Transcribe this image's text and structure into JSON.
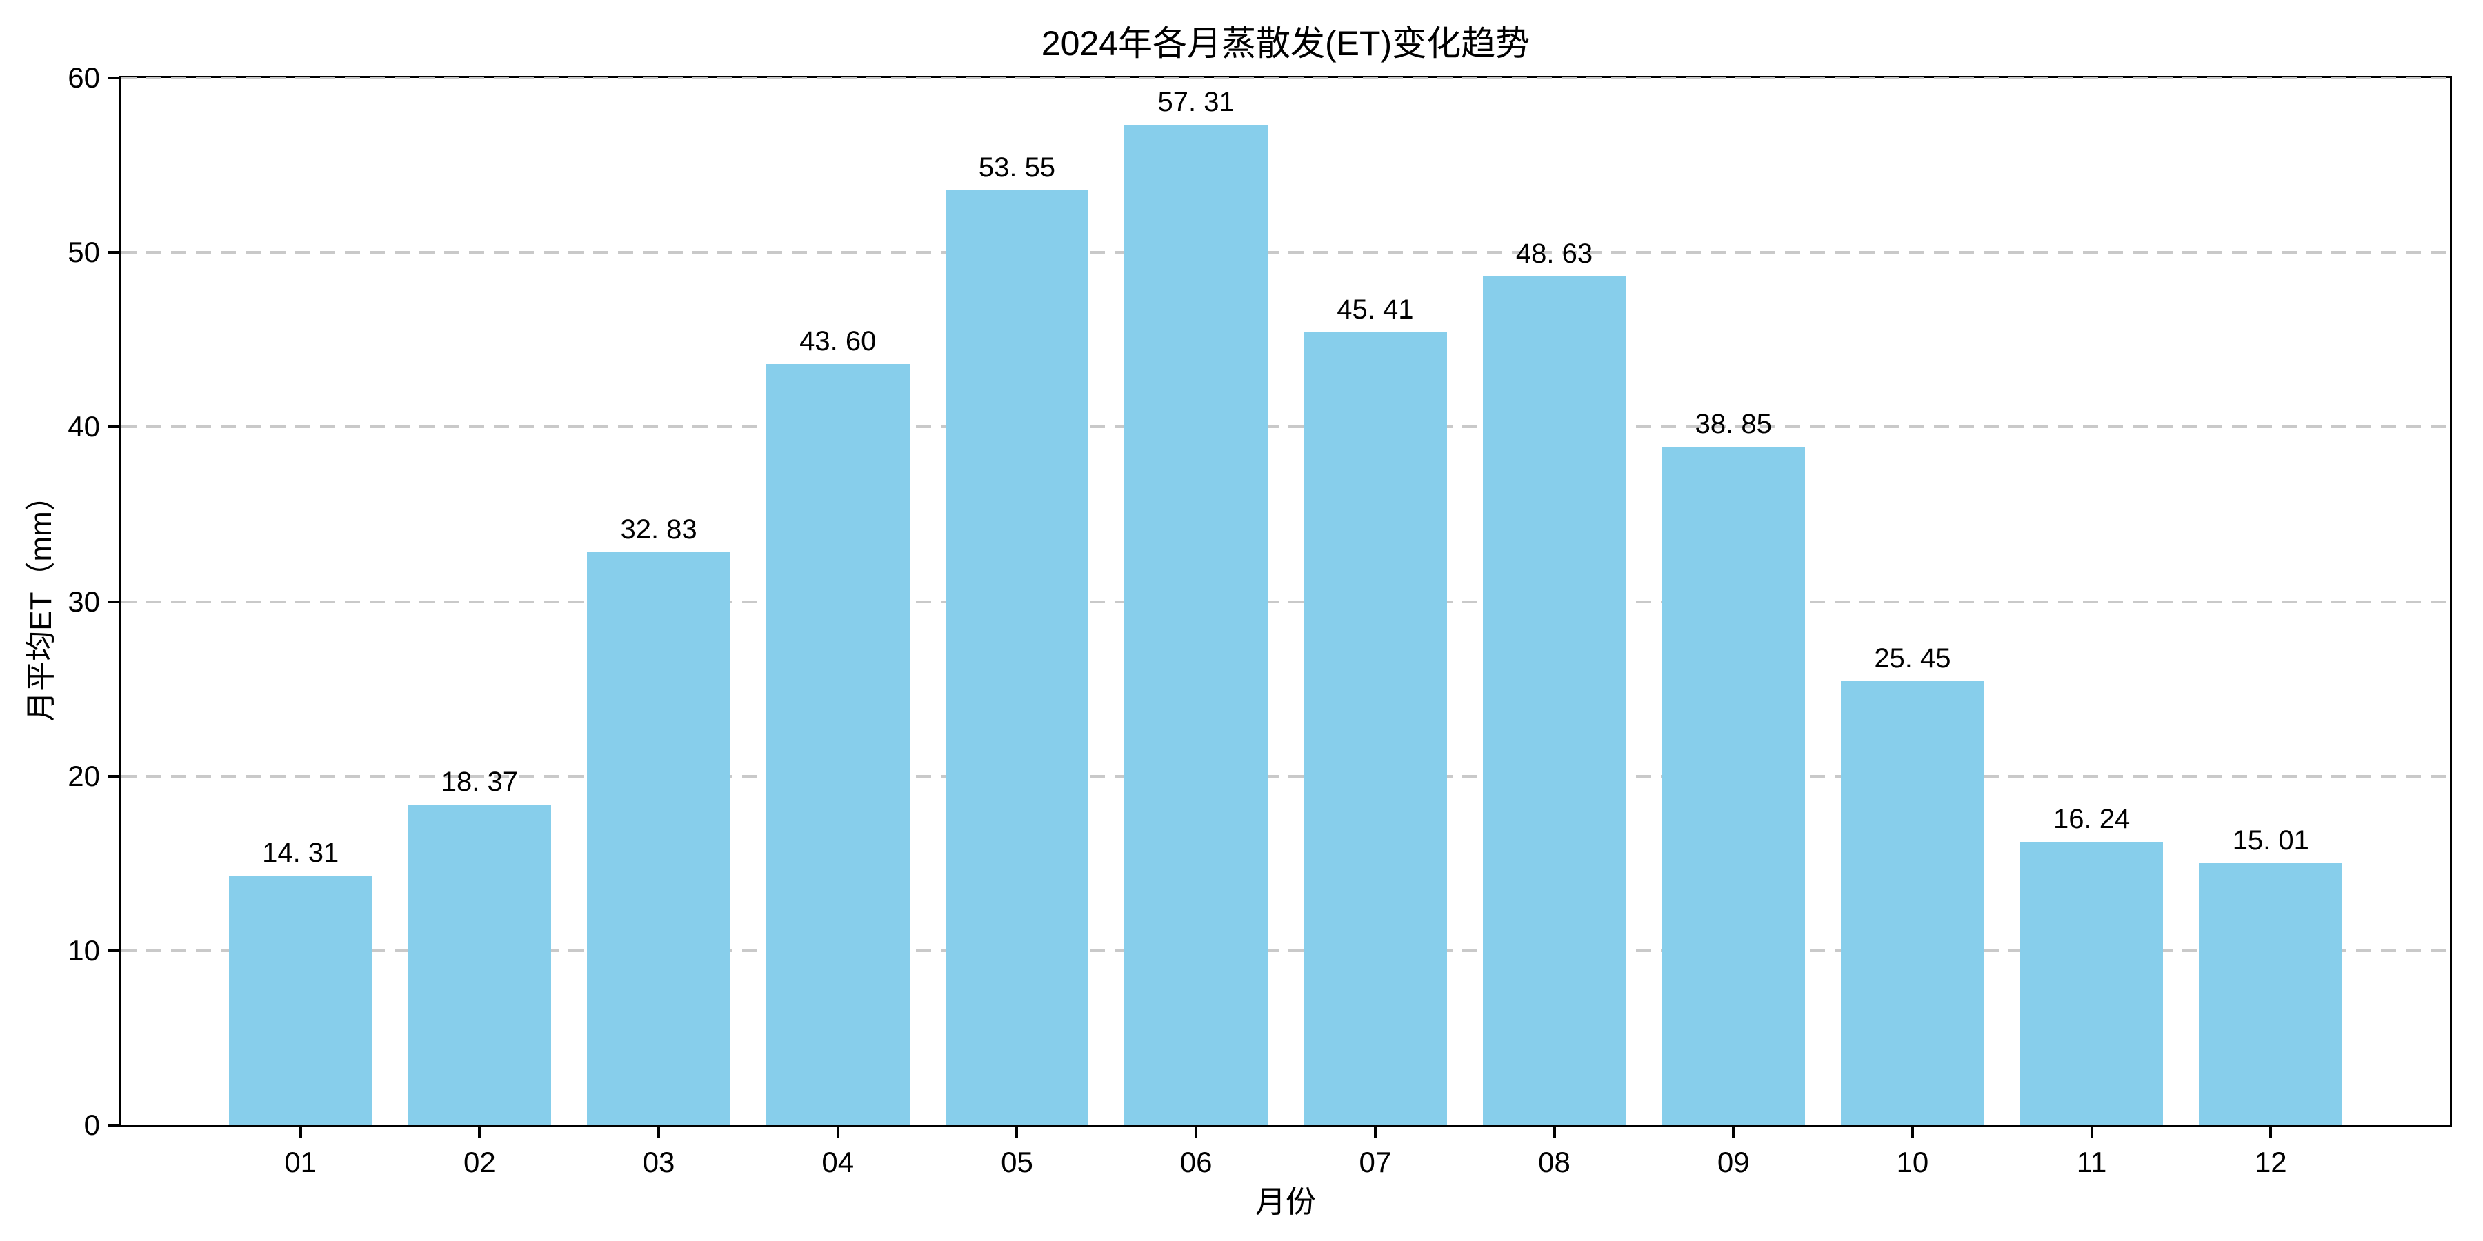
{
  "chart_data": {
    "type": "bar",
    "title": "2024年各月蒸散发(ET)变化趋势",
    "xlabel": "月份",
    "ylabel": "月平均ET（mm）",
    "categories": [
      "01",
      "02",
      "03",
      "04",
      "05",
      "06",
      "07",
      "08",
      "09",
      "10",
      "11",
      "12"
    ],
    "values": [
      14.31,
      18.37,
      32.83,
      43.6,
      53.55,
      57.31,
      45.41,
      48.63,
      38.85,
      25.45,
      16.24,
      15.01
    ],
    "value_labels": [
      "14. 31",
      "18. 37",
      "32. 83",
      "43. 60",
      "53. 55",
      "57. 31",
      "45. 41",
      "48. 63",
      "38. 85",
      "25. 45",
      "16. 24",
      "15. 01"
    ],
    "ytick_labels": [
      "0",
      "10",
      "20",
      "30",
      "40",
      "50",
      "60"
    ],
    "yticks": [
      0,
      10,
      20,
      30,
      40,
      50,
      60
    ],
    "ylim": [
      0,
      60
    ],
    "xlim": [
      -1,
      12
    ],
    "bar_width_data_units": 0.8,
    "grid": {
      "axis": "y",
      "style": "dashed",
      "color": "#c9c9c9"
    },
    "legend_position": "none",
    "bar_color": "#87CEEB"
  },
  "colors": {
    "background": "#ffffff",
    "axis": "#000000",
    "text": "#000000",
    "grid": "#c9c9c9",
    "bar": "#87CEEB"
  }
}
